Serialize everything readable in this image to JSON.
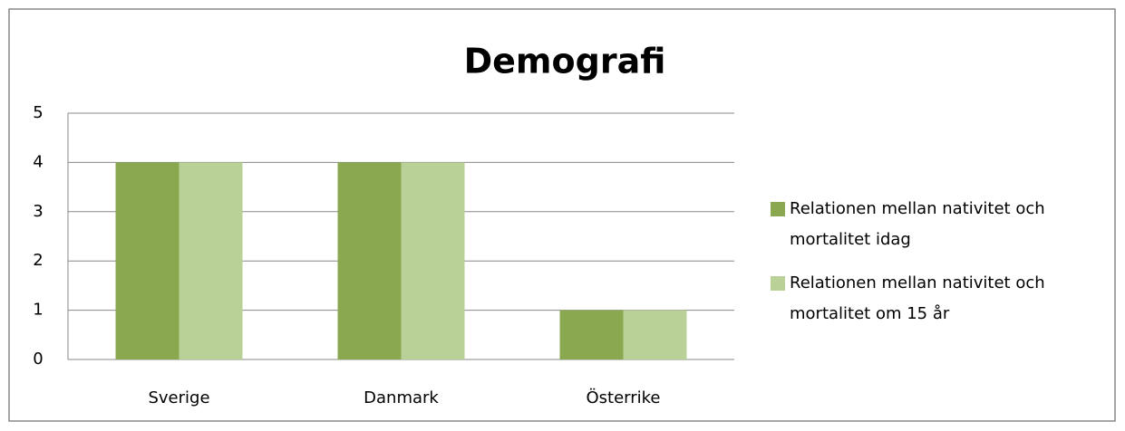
{
  "chart_data": {
    "type": "bar",
    "title": "Demografi",
    "categories": [
      "Sverige",
      "Danmark",
      "Österrike"
    ],
    "series": [
      {
        "name": "Relationen mellan nativitet och mortalitet idag",
        "color": "#8aa84f",
        "values": [
          4,
          4,
          1
        ]
      },
      {
        "name": "Relationen mellan nativitet och mortalitet om 15 år",
        "color": "#b9d097",
        "values": [
          4,
          4,
          1
        ]
      }
    ],
    "ylim": [
      0,
      5
    ],
    "yticks": [
      0,
      1,
      2,
      3,
      4,
      5
    ],
    "grid": true,
    "legend": "right"
  }
}
